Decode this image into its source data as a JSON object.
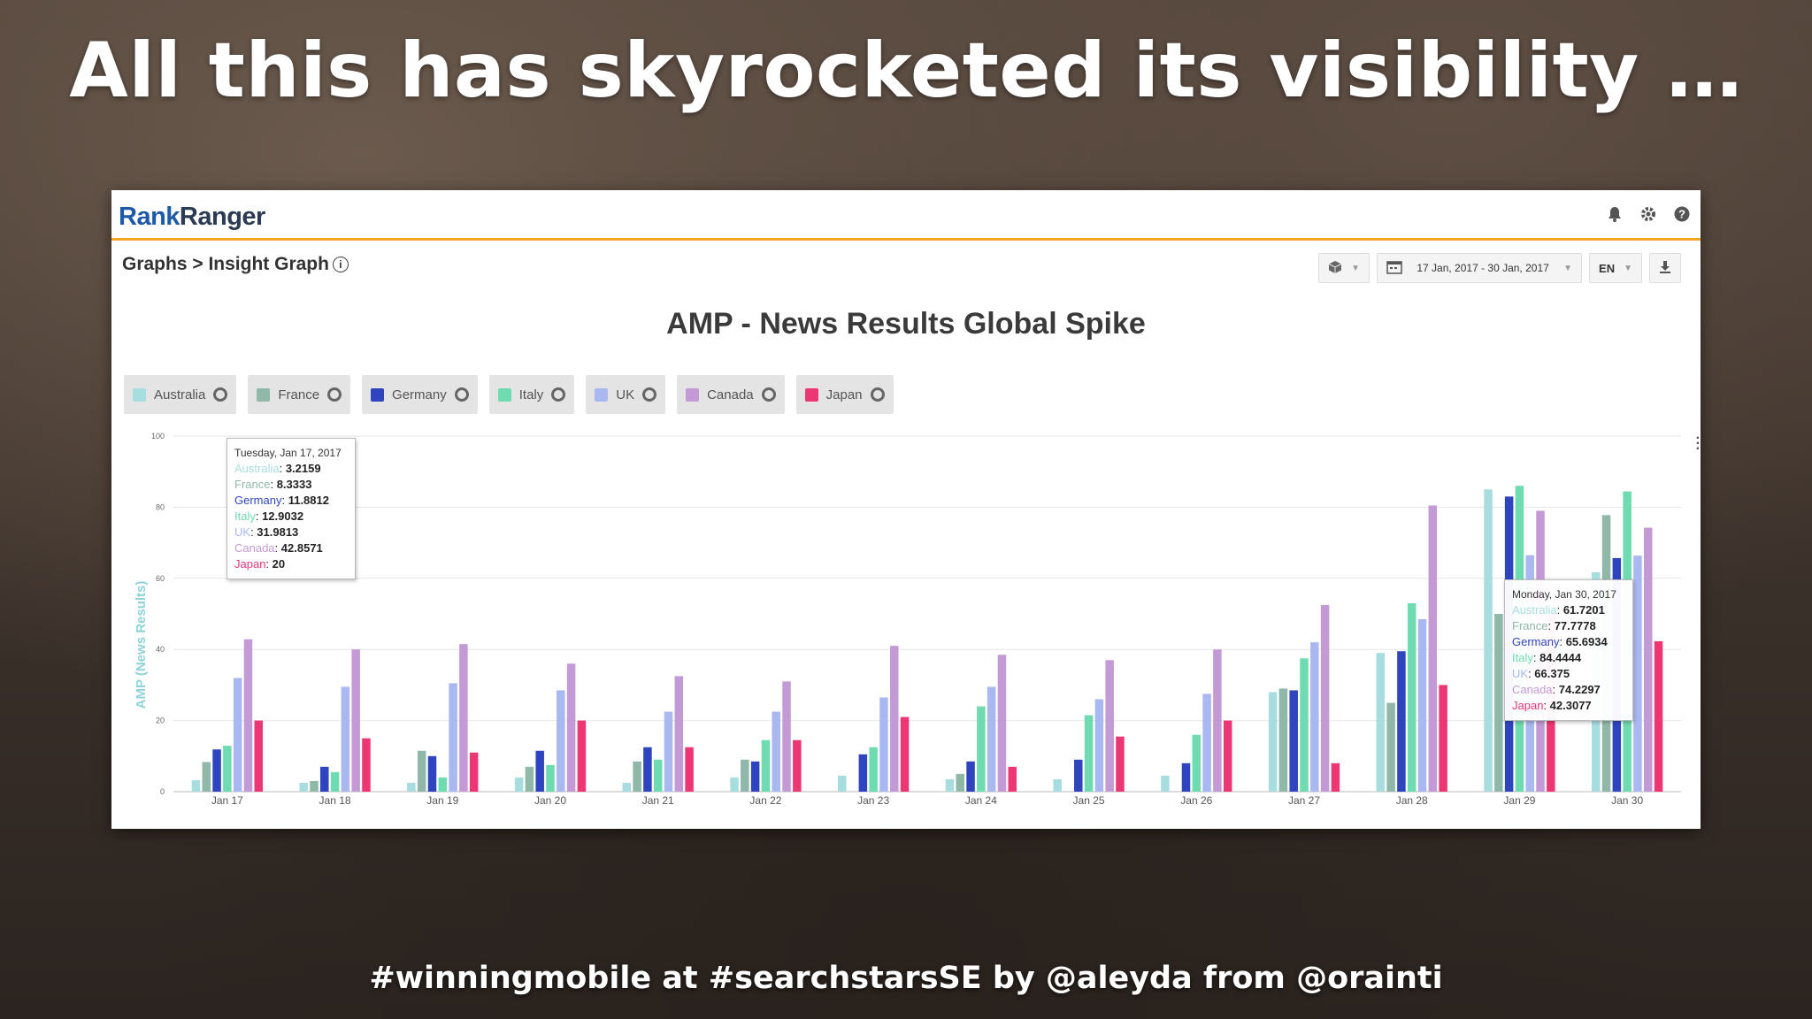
{
  "slide": {
    "title": "All this has skyrocketed its visibility …",
    "footer": "#winningmobile at #searchstarsSE by @aleyda from @orainti"
  },
  "app": {
    "logo_rank": "Rank",
    "logo_ranger": "Ranger",
    "header_icons": [
      "bell-icon",
      "gear-icon",
      "help-icon"
    ],
    "breadcrumb": "Graphs > Insight Graph",
    "toolbar": {
      "date_range": "17 Jan, 2017 - 30 Jan, 2017",
      "language": "EN"
    }
  },
  "chart_data": {
    "type": "bar",
    "title": "AMP - News Results Global Spike",
    "ylabel": "AMP (News Results)",
    "ylim": [
      0,
      100
    ],
    "yticks": [
      "100",
      "80",
      "60",
      "40",
      "20",
      "0"
    ],
    "categories": [
      "Jan 17",
      "Jan 18",
      "Jan 19",
      "Jan 20",
      "Jan 21",
      "Jan 22",
      "Jan 23",
      "Jan 24",
      "Jan 25",
      "Jan 26",
      "Jan 27",
      "Jan 28",
      "Jan 29",
      "Jan 30"
    ],
    "series": [
      {
        "name": "Australia",
        "color": "#a8dde0",
        "values": [
          3.2159,
          2.5,
          2.5,
          4,
          2.5,
          4,
          4.5,
          3.5,
          3.5,
          4.5,
          28,
          39,
          85,
          61.7201
        ]
      },
      {
        "name": "France",
        "color": "#90b8a8",
        "values": [
          8.3333,
          3,
          11.5,
          7,
          8.5,
          9,
          0,
          5,
          0,
          0,
          29,
          25,
          50,
          77.7778
        ]
      },
      {
        "name": "Germany",
        "color": "#2f45c0",
        "values": [
          11.8812,
          7,
          10,
          11.5,
          12.5,
          8.5,
          10.5,
          8.5,
          9,
          8,
          28.5,
          39.5,
          83,
          65.6934
        ]
      },
      {
        "name": "Italy",
        "color": "#6fdbb0",
        "values": [
          12.9032,
          5.5,
          4,
          7.5,
          9,
          14.5,
          12.5,
          24,
          21.5,
          16,
          37.5,
          53,
          86,
          84.4444
        ]
      },
      {
        "name": "UK",
        "color": "#aab8f2",
        "values": [
          31.9813,
          29.5,
          30.5,
          28.5,
          22.5,
          22.5,
          26.5,
          29.5,
          26,
          27.5,
          42,
          48.5,
          66.5,
          66.375
        ]
      },
      {
        "name": "Canada",
        "color": "#c49ad6",
        "values": [
          42.8571,
          40,
          41.5,
          36,
          32.5,
          31,
          41,
          38.5,
          37,
          40,
          52.5,
          80.5,
          79,
          74.2297
        ]
      },
      {
        "name": "Japan",
        "color": "#ec3774",
        "values": [
          20,
          15,
          11,
          20,
          12.5,
          14.5,
          21,
          7,
          15.5,
          20,
          8,
          30,
          50,
          42.3077
        ]
      }
    ],
    "legend": "top-left",
    "grid": true
  },
  "tooltips": [
    {
      "date": "Tuesday, Jan 17, 2017",
      "rows": [
        {
          "label": "Australia",
          "value": "3.2159",
          "color": "#a8dde0"
        },
        {
          "label": "France",
          "value": "8.3333",
          "color": "#90b8a8"
        },
        {
          "label": "Germany",
          "value": "11.8812",
          "color": "#2f45c0"
        },
        {
          "label": "Italy",
          "value": "12.9032",
          "color": "#6fdbb0"
        },
        {
          "label": "UK",
          "value": "31.9813",
          "color": "#aab8f2"
        },
        {
          "label": "Canada",
          "value": "42.8571",
          "color": "#c49ad6"
        },
        {
          "label": "Japan",
          "value": "20",
          "color": "#ec3774"
        }
      ]
    },
    {
      "date": "Monday, Jan 30, 2017",
      "rows": [
        {
          "label": "Australia",
          "value": "61.7201",
          "color": "#a8dde0"
        },
        {
          "label": "France",
          "value": "77.7778",
          "color": "#90b8a8"
        },
        {
          "label": "Germany",
          "value": "65.6934",
          "color": "#2f45c0"
        },
        {
          "label": "Italy",
          "value": "84.4444",
          "color": "#6fdbb0"
        },
        {
          "label": "UK",
          "value": "66.375",
          "color": "#aab8f2"
        },
        {
          "label": "Canada",
          "value": "74.2297",
          "color": "#c49ad6"
        },
        {
          "label": "Japan",
          "value": "42.3077",
          "color": "#ec3774"
        }
      ]
    }
  ]
}
